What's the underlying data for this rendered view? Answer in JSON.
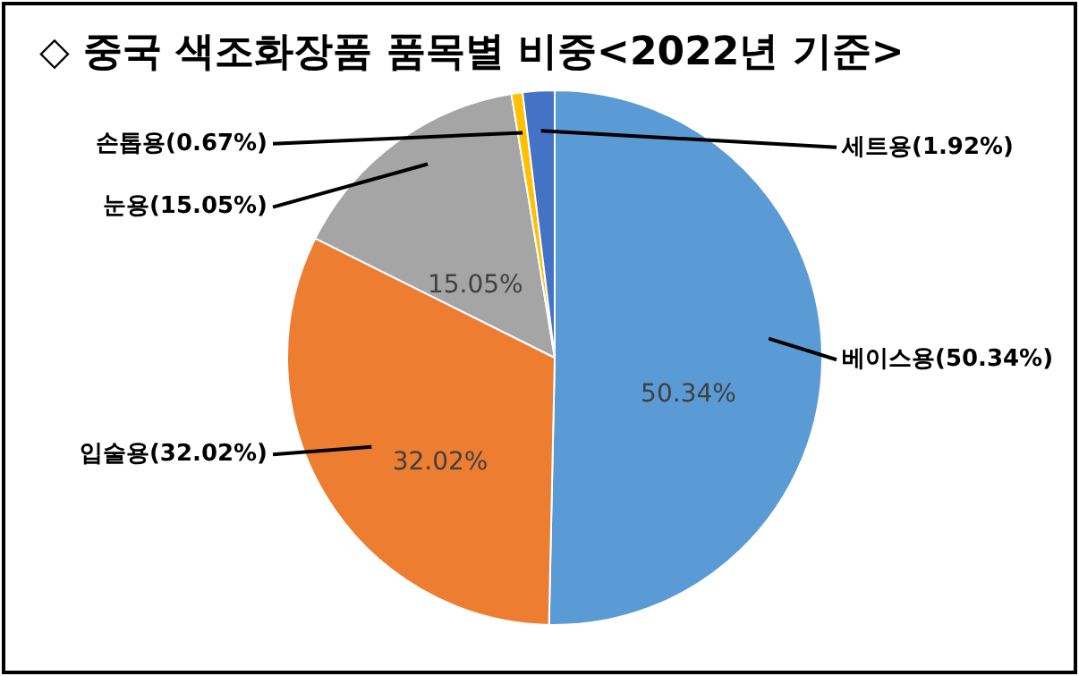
{
  "chart_data": {
    "type": "pie",
    "title": "◇ 중국 색조화장품 품목별 비중<2022년 기준>",
    "categories": [
      "베이스용(50.34%)",
      "입술용(32.02%)",
      "눈용(15.05%)",
      "손톱용(0.67%)",
      "세트용(1.92%)"
    ],
    "values": [
      50.34,
      32.02,
      15.05,
      0.67,
      1.92
    ],
    "colors": [
      "#5b9bd5",
      "#ed7d31",
      "#a5a5a5",
      "#ffc000",
      "#4472c4"
    ],
    "value_labels": [
      "50.34%",
      "32.02%",
      "15.05%",
      null,
      null
    ],
    "legend": false
  }
}
